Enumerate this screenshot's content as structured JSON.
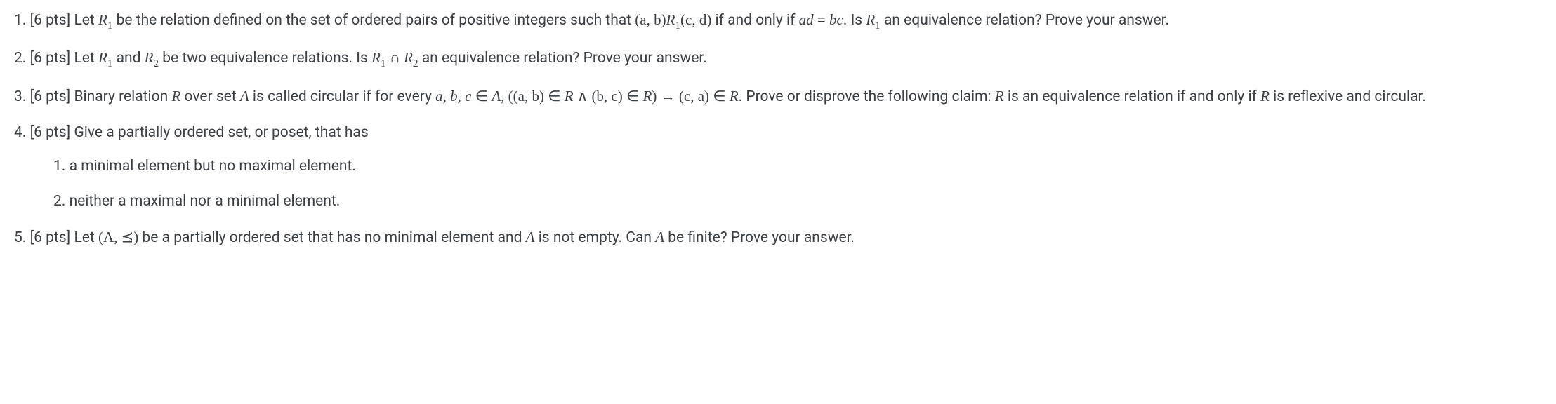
{
  "problems": {
    "p1": {
      "number": "1.",
      "points": "[6 pts]",
      "text_part1": "Let ",
      "R1": "R",
      "R1_sub": "1",
      "text_part2": " be the relation defined on the set of ordered pairs of positive integers such that ",
      "pair1": "(a, b)",
      "rel1": "R",
      "rel1_sub": "1",
      "pair2": "(c, d)",
      "text_part3": " if and only if ",
      "eq_lhs": "ad",
      "eq_op": " = ",
      "eq_rhs": "bc",
      "text_part4": ". Is ",
      "R1b": "R",
      "R1b_sub": "1",
      "text_part5": " an equivalence relation? Prove your answer."
    },
    "p2": {
      "number": "2.",
      "points": "[6 pts]",
      "text_part1": "Let ",
      "R1": "R",
      "R1_sub": "1",
      "text_part2": " and ",
      "R2": "R",
      "R2_sub": "2",
      "text_part3": " be two equivalence relations. Is ",
      "R1b": "R",
      "R1b_sub": "1",
      "cap": " ∩ ",
      "R2b": "R",
      "R2b_sub": "2",
      "text_part4": " an equivalence relation? Prove your answer."
    },
    "p3": {
      "number": "3.",
      "points": "[6 pts]",
      "text_part1": "Binary relation ",
      "R": "R",
      "text_part2": " over set ",
      "A": "A",
      "text_part3": " is called circular if for every ",
      "abc": "a, b, c",
      "in1": " ∈ ",
      "A2": "A",
      "comma": ", ",
      "lparen": "(",
      "ab": "(a, b)",
      "in2": " ∈ ",
      "R2": "R",
      "and": " ∧ ",
      "bc": "(b, c)",
      "in3": " ∈ ",
      "R3": "R",
      "rparen": ")",
      "arrow": " → ",
      "ca": "(c, a)",
      "in4": " ∈ ",
      "R4": "R",
      "text_part4": ". Prove or disprove the following claim: ",
      "R5": "R",
      "text_part5": " is an equivalence relation if and only if ",
      "R6": "R",
      "text_part6": " is reflexive and circular."
    },
    "p4": {
      "number": "4.",
      "points": "[6 pts]",
      "text": "Give a partially ordered set, or poset, that has",
      "sub1_num": "1.",
      "sub1_text": "a minimal element but no maximal element.",
      "sub2_num": "2.",
      "sub2_text": "neither a maximal nor a minimal element."
    },
    "p5": {
      "number": "5.",
      "points": "[6 pts]",
      "text_part1": "Let ",
      "poset": "(A, ⪯)",
      "text_part2": " be a partially ordered set that has no minimal element and ",
      "A": "A",
      "text_part3": " is not empty. Can ",
      "A2": "A",
      "text_part4": " be finite? Prove your answer."
    }
  }
}
